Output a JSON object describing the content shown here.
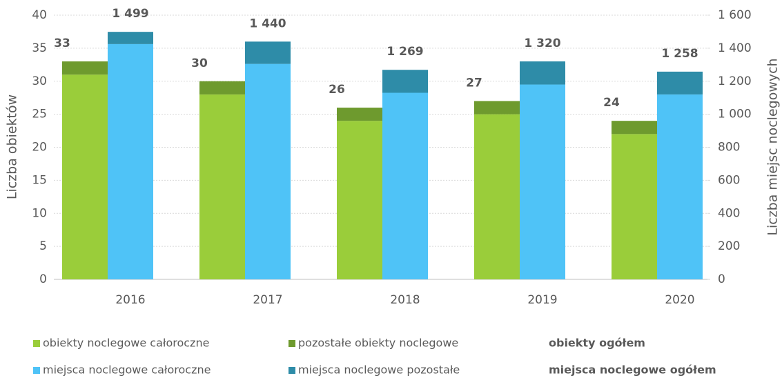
{
  "chart_data": {
    "type": "bar",
    "y_label": "Liczba obiektów",
    "y2_label": "Liczba miejsc noclegowych",
    "categories": [
      "2016",
      "2017",
      "2018",
      "2019",
      "2020"
    ],
    "series": [
      {
        "name": "obiekty noclegowe całoroczne",
        "color": "#9acd3a",
        "axis": "y",
        "values": [
          31,
          28,
          24,
          25,
          22
        ]
      },
      {
        "name": "pozostałe obiekty noclegowe",
        "color": "#6e9a2e",
        "axis": "y",
        "values": [
          2,
          2,
          2,
          2,
          2
        ]
      },
      {
        "name": "miejsca noclegowe całoroczne",
        "color": "#4fc3f7",
        "axis": "y2",
        "values": [
          1425,
          1305,
          1130,
          1180,
          1120
        ]
      },
      {
        "name": "miejsca noclegowe pozostałe",
        "color": "#2e8ca8",
        "axis": "y2",
        "values": [
          74,
          135,
          139,
          140,
          138
        ]
      }
    ],
    "totals": [
      {
        "name": "obiekty ogółem",
        "axis": "y",
        "values": [
          33,
          30,
          26,
          27,
          24
        ]
      },
      {
        "name": "miejsca noclegowe ogółem",
        "axis": "y2",
        "values": [
          1499,
          1440,
          1269,
          1320,
          1258
        ],
        "value_labels": [
          "1 499",
          "1 440",
          "1 269",
          "1 320",
          "1 258"
        ]
      }
    ],
    "ylim": [
      0,
      40
    ],
    "yticks": [
      0,
      5,
      10,
      15,
      20,
      25,
      30,
      35,
      40
    ],
    "y2lim": [
      0,
      1600
    ],
    "y2ticks": [
      0,
      200,
      400,
      600,
      800,
      {
        "value": 1000,
        "label": "1 000"
      },
      {
        "value": 1200,
        "label": "1 200"
      },
      {
        "value": 1400,
        "label": "1 400"
      },
      {
        "value": 1600,
        "label": "1 600"
      }
    ],
    "grid": true
  }
}
